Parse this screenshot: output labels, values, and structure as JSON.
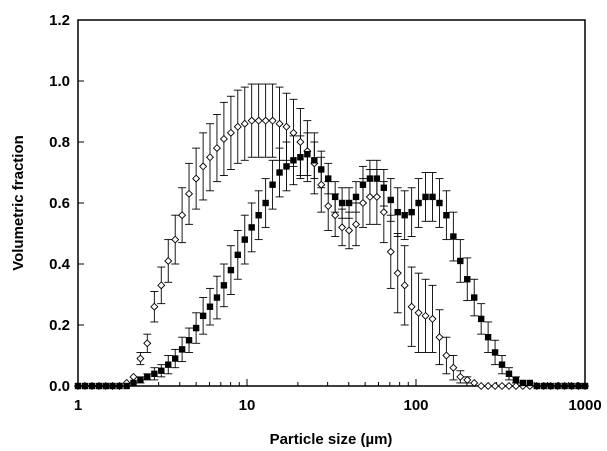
{
  "chart_data": {
    "type": "scatter",
    "xlabel": "Particle size (µm)",
    "ylabel": "Volumetric fraction",
    "xscale": "log",
    "xlim": [
      1,
      1000
    ],
    "ylim": [
      0,
      1.2
    ],
    "x_ticks": [
      1,
      10,
      100,
      1000
    ],
    "x_tick_labels": [
      "1",
      "10",
      "100",
      "1000"
    ],
    "y_ticks": [
      0,
      0.2,
      0.4,
      0.6,
      0.8,
      1.0,
      1.2
    ],
    "y_tick_labels": [
      "0.0",
      "0.2",
      "0.4",
      "0.6",
      "0.8",
      "1.0",
      "1.2"
    ],
    "grid": false,
    "legend": "none",
    "series": [
      {
        "marker": "open-diamond",
        "color": "#000000",
        "x": [
          1,
          1.1,
          1.21,
          1.33,
          1.46,
          1.6,
          1.76,
          1.94,
          2.13,
          2.34,
          2.57,
          2.83,
          3.11,
          3.42,
          3.76,
          4.13,
          4.54,
          5,
          5.5,
          6.04,
          6.64,
          7.3,
          8.03,
          8.82,
          9.7,
          10.66,
          11.72,
          12.89,
          14.17,
          15.58,
          17.13,
          18.83,
          20.7,
          22.76,
          25.02,
          27.5,
          30.24,
          33.24,
          36.54,
          40.17,
          44.16,
          48.55,
          53.37,
          58.68,
          64.51,
          70.92,
          77.96,
          85.71,
          94.23,
          103.59,
          113.88,
          125.2,
          137.64,
          151.31,
          166.35,
          182.88,
          201.05,
          221.03,
          242.99,
          267.13,
          293.68,
          322.86,
          354.94,
          390.21,
          428.98,
          471.61,
          518.47,
          569.99,
          626.63,
          688.89,
          757.34,
          832.6,
          915.33,
          1000
        ],
        "y": [
          0,
          0,
          0,
          0,
          0,
          0,
          0,
          0.01,
          0.03,
          0.09,
          0.14,
          0.26,
          0.33,
          0.41,
          0.48,
          0.56,
          0.63,
          0.68,
          0.72,
          0.75,
          0.78,
          0.81,
          0.83,
          0.85,
          0.86,
          0.87,
          0.87,
          0.87,
          0.87,
          0.86,
          0.85,
          0.83,
          0.8,
          0.77,
          0.73,
          0.66,
          0.59,
          0.56,
          0.52,
          0.51,
          0.53,
          0.6,
          0.62,
          0.62,
          0.57,
          0.44,
          0.37,
          0.33,
          0.26,
          0.24,
          0.23,
          0.22,
          0.16,
          0.1,
          0.06,
          0.03,
          0.02,
          0.01,
          0,
          0,
          0,
          0,
          0,
          0,
          0,
          0,
          0,
          0,
          0,
          0,
          0,
          0,
          0,
          0
        ],
        "error": [
          0,
          0,
          0,
          0,
          0,
          0,
          0,
          0,
          0,
          0.02,
          0.03,
          0.05,
          0.06,
          0.07,
          0.08,
          0.09,
          0.1,
          0.1,
          0.11,
          0.11,
          0.11,
          0.12,
          0.12,
          0.12,
          0.12,
          0.12,
          0.12,
          0.12,
          0.12,
          0.12,
          0.11,
          0.11,
          0.11,
          0.1,
          0.1,
          0.09,
          0.08,
          0.07,
          0.06,
          0.06,
          0.07,
          0.08,
          0.09,
          0.09,
          0.1,
          0.12,
          0.13,
          0.13,
          0.13,
          0.13,
          0.12,
          0.11,
          0.09,
          0.06,
          0.04,
          0.02,
          0.01,
          0,
          0,
          0,
          0,
          0,
          0,
          0,
          0,
          0,
          0,
          0,
          0,
          0,
          0,
          0,
          0,
          0
        ]
      },
      {
        "marker": "filled-square",
        "color": "#000000",
        "x": [
          1,
          1.1,
          1.21,
          1.33,
          1.46,
          1.6,
          1.76,
          1.94,
          2.13,
          2.34,
          2.57,
          2.83,
          3.11,
          3.42,
          3.76,
          4.13,
          4.54,
          5,
          5.5,
          6.04,
          6.64,
          7.3,
          8.03,
          8.82,
          9.7,
          10.66,
          11.72,
          12.89,
          14.17,
          15.58,
          17.13,
          18.83,
          20.7,
          22.76,
          25.02,
          27.5,
          30.24,
          33.24,
          36.54,
          40.17,
          44.16,
          48.55,
          53.37,
          58.68,
          64.51,
          70.92,
          77.96,
          85.71,
          94.23,
          103.59,
          113.88,
          125.2,
          137.64,
          151.31,
          166.35,
          182.88,
          201.05,
          221.03,
          242.99,
          267.13,
          293.68,
          322.86,
          354.94,
          390.21,
          428.98,
          471.61,
          518.47,
          569.99,
          626.63,
          688.89,
          757.34,
          832.6,
          915.33,
          1000
        ],
        "y": [
          0,
          0,
          0,
          0,
          0,
          0,
          0,
          0,
          0.01,
          0.02,
          0.03,
          0.04,
          0.05,
          0.07,
          0.09,
          0.12,
          0.15,
          0.19,
          0.23,
          0.26,
          0.29,
          0.33,
          0.38,
          0.43,
          0.48,
          0.52,
          0.56,
          0.6,
          0.66,
          0.7,
          0.72,
          0.74,
          0.75,
          0.76,
          0.74,
          0.71,
          0.68,
          0.62,
          0.6,
          0.6,
          0.62,
          0.66,
          0.68,
          0.68,
          0.65,
          0.61,
          0.57,
          0.56,
          0.57,
          0.6,
          0.62,
          0.62,
          0.6,
          0.56,
          0.49,
          0.41,
          0.35,
          0.29,
          0.22,
          0.16,
          0.11,
          0.07,
          0.04,
          0.02,
          0.01,
          0.01,
          0,
          0,
          0,
          0,
          0,
          0,
          0,
          0
        ],
        "error": [
          0,
          0,
          0,
          0,
          0,
          0,
          0,
          0,
          0,
          0.01,
          0.01,
          0.02,
          0.02,
          0.03,
          0.03,
          0.04,
          0.04,
          0.05,
          0.06,
          0.06,
          0.07,
          0.07,
          0.08,
          0.08,
          0.08,
          0.08,
          0.08,
          0.08,
          0.08,
          0.08,
          0.08,
          0.08,
          0.07,
          0.07,
          0.06,
          0.06,
          0.05,
          0.05,
          0.05,
          0.05,
          0.05,
          0.06,
          0.06,
          0.06,
          0.06,
          0.07,
          0.08,
          0.08,
          0.08,
          0.08,
          0.08,
          0.08,
          0.08,
          0.08,
          0.08,
          0.07,
          0.07,
          0.06,
          0.05,
          0.05,
          0.04,
          0.03,
          0.02,
          0.01,
          0,
          0,
          0,
          0,
          0,
          0,
          0,
          0,
          0,
          0
        ]
      }
    ]
  }
}
